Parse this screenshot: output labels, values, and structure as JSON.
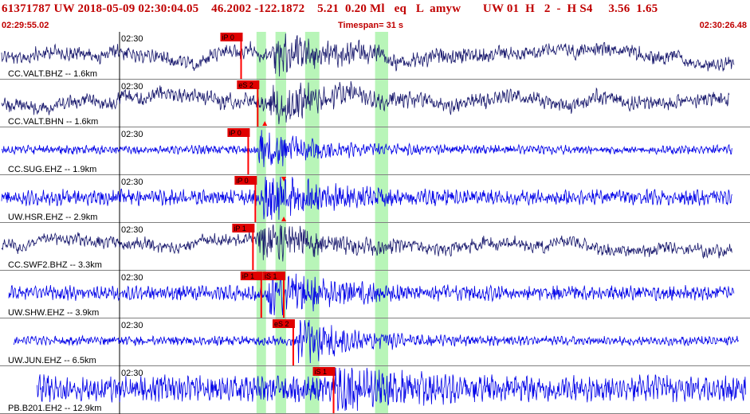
{
  "header": {
    "event_info": "61371787 UW 2018-05-09 02:30:04.05    46.2002 -122.1872    5.21  0.20 Ml   eq   L  amyw       UW 01  H   2  -  H S4     3.56  1.65",
    "start_time": "02:29:55.02",
    "timespan": "Timespan=  31 s",
    "end_time": "02:30:26.48"
  },
  "colors": {
    "header_text": "#c00000",
    "trace_dark": "#1a1a6e",
    "trace_blue": "#0000e8",
    "pick_red": "#ff0000",
    "pick_box": "#e00000",
    "window_green": "#b8f5b8",
    "separator": "#808080"
  },
  "time_window": {
    "start_s": 0,
    "end_s": 31.46
  },
  "green_windows": [
    {
      "start_s": 10.75,
      "end_s": 11.15
    },
    {
      "start_s": 11.55,
      "end_s": 12.0
    },
    {
      "start_s": 12.8,
      "end_s": 13.4
    },
    {
      "start_s": 15.75,
      "end_s": 16.3
    }
  ],
  "panels": [
    {
      "tick_label": "02:30",
      "station_label": "CC.VALT.BHZ -- 1.6km",
      "color": "dark",
      "data_start_s": 0.0,
      "data_end_s": 30.9,
      "noise": 0.24,
      "event_s": 11.4,
      "event_amp": 0.7,
      "picks": [
        {
          "label": "iP 0",
          "time_s": 10.1
        }
      ],
      "markers": []
    },
    {
      "tick_label": "02:30",
      "station_label": "CC.VALT.BHN -- 1.6km",
      "color": "dark",
      "data_start_s": 0.0,
      "data_end_s": 30.7,
      "noise": 0.24,
      "event_s": 11.3,
      "event_amp": 0.72,
      "picks": [
        {
          "label": "eS 2",
          "time_s": 10.8
        }
      ],
      "markers": [
        {
          "time_s": 11.1,
          "dir": "up"
        }
      ]
    },
    {
      "tick_label": "02:30",
      "station_label": "CC.SUG.EHZ -- 1.9km",
      "color": "blue",
      "data_start_s": 0.0,
      "data_end_s": 30.8,
      "noise": 0.16,
      "event_s": 10.8,
      "event_amp": 0.68,
      "picks": [
        {
          "label": "iP 0",
          "time_s": 10.4
        }
      ],
      "markers": []
    },
    {
      "tick_label": "02:30",
      "station_label": "UW.HSR.EHZ -- 2.9km",
      "color": "blue",
      "data_start_s": 0.0,
      "data_end_s": 30.8,
      "noise": 0.28,
      "event_s": 11.0,
      "event_amp": 0.82,
      "picks": [
        {
          "label": "iP 0",
          "time_s": 10.7
        }
      ],
      "markers": [
        {
          "time_s": 11.9,
          "dir": "down"
        },
        {
          "time_s": 11.9,
          "dir": "up"
        }
      ]
    },
    {
      "tick_label": "02:30",
      "station_label": "CC.SWF2.BHZ -- 3.3km",
      "color": "dark",
      "data_start_s": 0.0,
      "data_end_s": 30.8,
      "noise": 0.2,
      "event_s": 10.8,
      "event_amp": 0.78,
      "picks": [
        {
          "label": "iP 1",
          "time_s": 10.6
        }
      ],
      "markers": []
    },
    {
      "tick_label": "02:30",
      "station_label": "UW.SHW.EHZ -- 3.9km",
      "color": "blue",
      "data_start_s": 0.3,
      "data_end_s": 30.9,
      "noise": 0.26,
      "event_s": 11.2,
      "event_amp": 0.85,
      "picks": [
        {
          "label": "iP 1",
          "time_s": 10.95
        },
        {
          "label": "iS 1",
          "time_s": 11.9
        }
      ],
      "markers": []
    },
    {
      "tick_label": "02:30",
      "station_label": "UW.JUN.EHZ -- 6.5km",
      "color": "blue",
      "data_start_s": 0.5,
      "data_end_s": 31.1,
      "noise": 0.16,
      "event_s": 12.5,
      "event_amp": 0.82,
      "picks": [
        {
          "label": "eS 2",
          "time_s": 12.3
        }
      ],
      "markers": []
    },
    {
      "tick_label": "02:30",
      "station_label": "PB.B201.EH2 -- 12.9km",
      "color": "blue",
      "data_start_s": 1.5,
      "data_end_s": 31.4,
      "noise": 0.46,
      "event_s": 14.0,
      "event_amp": 0.6,
      "picks": [
        {
          "label": "iS 1",
          "time_s": 14.0
        }
      ],
      "markers": []
    }
  ]
}
